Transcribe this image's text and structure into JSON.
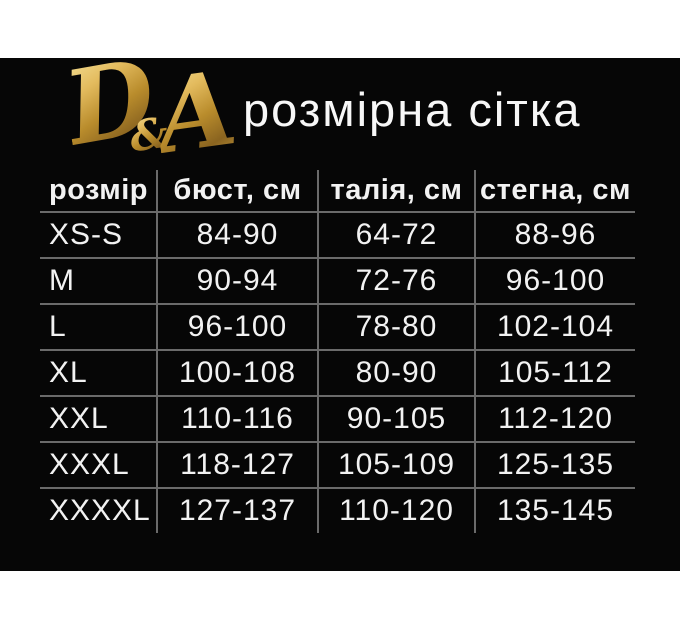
{
  "brand": {
    "logo_d": "D",
    "logo_amp": "&",
    "logo_a": "A"
  },
  "chart_data": {
    "type": "table",
    "title": "розмірна сітка",
    "columns": [
      "розмір",
      "бюст, см",
      "талія, см",
      "стегна, см"
    ],
    "rows": [
      [
        "XS-S",
        "84-90",
        "64-72",
        "88-96"
      ],
      [
        "M",
        "90-94",
        "72-76",
        "96-100"
      ],
      [
        "L",
        "96-100",
        "78-80",
        "102-104"
      ],
      [
        "XL",
        "100-108",
        "80-90",
        "105-112"
      ],
      [
        "XXL",
        "110-116",
        "90-105",
        "112-120"
      ],
      [
        "XXXL",
        "118-127",
        "105-109",
        "125-135"
      ],
      [
        "XXXXL",
        "127-137",
        "110-120",
        "135-145"
      ]
    ],
    "layout": {
      "grid": "on",
      "first_column_align": "left",
      "value_align": "center"
    }
  },
  "colors": {
    "page_background": "#ffffff",
    "panel_background": "#060606",
    "grid_line": "#6a6a6a",
    "text": "#f2f2f2",
    "gold_light": "#f3dd92",
    "gold_dark": "#8a6420"
  }
}
